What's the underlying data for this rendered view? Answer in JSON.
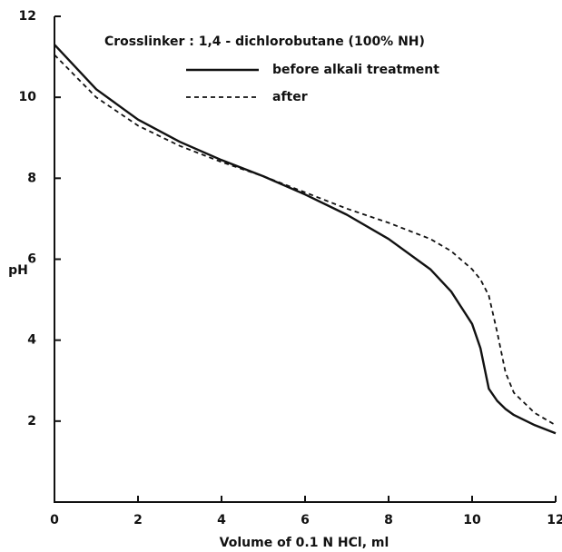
{
  "chart_data": {
    "type": "line",
    "legend_title": "Crosslinker : 1,4 - dichlorobutane (100% NH)",
    "xlabel": "Volume of 0.1 N HCl, ml",
    "ylabel": "pH",
    "x": [
      0,
      1,
      2,
      3,
      4,
      5,
      6,
      7,
      8,
      9,
      9.5,
      10,
      10.2,
      10.4,
      10.6,
      10.8,
      11,
      11.5,
      12
    ],
    "series": [
      {
        "name": "before alkali treatment",
        "color": "#111111",
        "dash": false,
        "values": [
          11.3,
          10.2,
          9.45,
          8.9,
          8.45,
          8.05,
          7.6,
          7.1,
          6.5,
          5.75,
          5.2,
          4.4,
          3.8,
          2.8,
          2.5,
          2.3,
          2.15,
          1.9,
          1.7
        ]
      },
      {
        "name": "after",
        "color": "#111111",
        "dash": true,
        "values": [
          11.05,
          10.0,
          9.3,
          8.8,
          8.4,
          8.05,
          7.65,
          7.25,
          6.9,
          6.5,
          6.2,
          5.75,
          5.5,
          5.1,
          4.2,
          3.2,
          2.7,
          2.2,
          1.9
        ]
      }
    ],
    "xlim": [
      0,
      12
    ],
    "xticks": [
      0,
      2,
      4,
      6,
      8,
      10,
      12
    ],
    "ylim": [
      0,
      12
    ],
    "yticks": [
      2,
      4,
      6,
      8,
      10,
      12
    ]
  }
}
